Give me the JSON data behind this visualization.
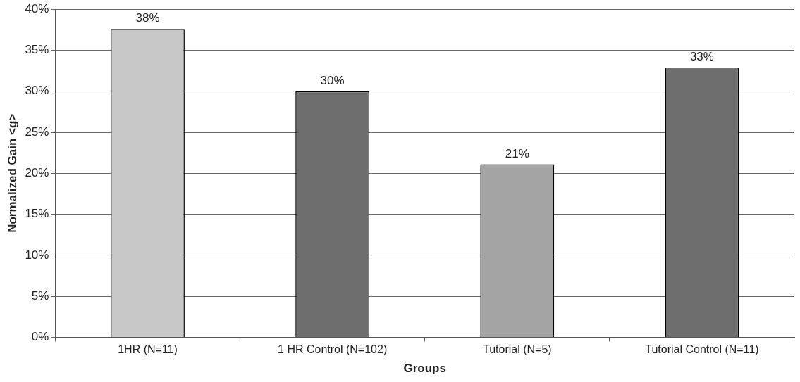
{
  "chart_data": {
    "type": "bar",
    "xlabel": "Groups",
    "ylabel": "Normalized Gain <g>",
    "categories": [
      "1HR (N=11)",
      "1 HR Control (N=102)",
      "Tutorial (N=5)",
      "Tutorial Control (N=11)"
    ],
    "values": [
      37.6,
      30,
      21.1,
      32.9
    ],
    "value_labels": [
      "38%",
      "30%",
      "21%",
      "33%"
    ],
    "colors": [
      "#c8c8c8",
      "#6e6e6e",
      "#a4a4a4",
      "#6e6e6e"
    ],
    "ylim": [
      0,
      40
    ],
    "yticks": [
      {
        "value": 0,
        "label": "0%"
      },
      {
        "value": 5,
        "label": "5%"
      },
      {
        "value": 10,
        "label": "10%"
      },
      {
        "value": 15,
        "label": "15%"
      },
      {
        "value": 20,
        "label": "20%"
      },
      {
        "value": 25,
        "label": "25%"
      },
      {
        "value": 30,
        "label": "30%"
      },
      {
        "value": 35,
        "label": "35%"
      },
      {
        "value": 40,
        "label": "40%"
      }
    ],
    "grid": "y",
    "legend": false
  }
}
